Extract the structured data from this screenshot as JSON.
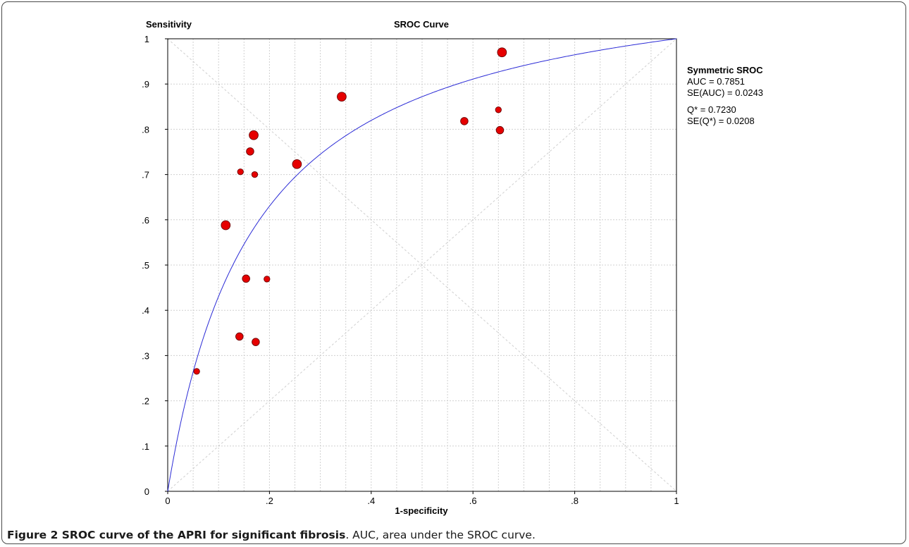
{
  "chart_data": {
    "type": "scatter",
    "title": "SROC Curve",
    "xlabel": "1-specificity",
    "ylabel": "Sensitivity",
    "xlim": [
      0,
      1
    ],
    "ylim": [
      0,
      1
    ],
    "x_ticks": [
      "0",
      ".2",
      ".4",
      ".6",
      ".8",
      "1"
    ],
    "y_ticks": [
      "0",
      ".1",
      ".2",
      ".3",
      ".4",
      ".5",
      ".6",
      ".7",
      ".8",
      ".9",
      "1"
    ],
    "grid": true,
    "point_color": "#e60000",
    "curve_color": "#2b2bd6",
    "points": [
      {
        "x": 0.057,
        "y": 0.265,
        "size": "small"
      },
      {
        "x": 0.114,
        "y": 0.588,
        "size": "large"
      },
      {
        "x": 0.141,
        "y": 0.342,
        "size": "medium"
      },
      {
        "x": 0.143,
        "y": 0.706,
        "size": "small"
      },
      {
        "x": 0.154,
        "y": 0.47,
        "size": "medium"
      },
      {
        "x": 0.162,
        "y": 0.751,
        "size": "medium"
      },
      {
        "x": 0.169,
        "y": 0.787,
        "size": "large"
      },
      {
        "x": 0.171,
        "y": 0.7,
        "size": "small"
      },
      {
        "x": 0.173,
        "y": 0.33,
        "size": "medium"
      },
      {
        "x": 0.195,
        "y": 0.469,
        "size": "small"
      },
      {
        "x": 0.254,
        "y": 0.723,
        "size": "large"
      },
      {
        "x": 0.342,
        "y": 0.872,
        "size": "large"
      },
      {
        "x": 0.583,
        "y": 0.818,
        "size": "medium"
      },
      {
        "x": 0.65,
        "y": 0.843,
        "size": "small"
      },
      {
        "x": 0.653,
        "y": 0.798,
        "size": "medium"
      },
      {
        "x": 0.657,
        "y": 0.97,
        "size": "large"
      }
    ],
    "curve": {
      "type": "symmetric-sroc",
      "q_star": 0.723
    },
    "legend_position": "right",
    "annotation": {
      "heading": "Symmetric SROC",
      "lines": [
        "AUC = 0.7851",
        "SE(AUC) = 0.0243",
        "Q* = 0.7230",
        "SE(Q*) = 0.0208"
      ]
    }
  },
  "caption": {
    "bold": "Figure 2 SROC curve of the APRI for significant fibrosis",
    "rest": ". AUC, area under the SROC curve."
  }
}
